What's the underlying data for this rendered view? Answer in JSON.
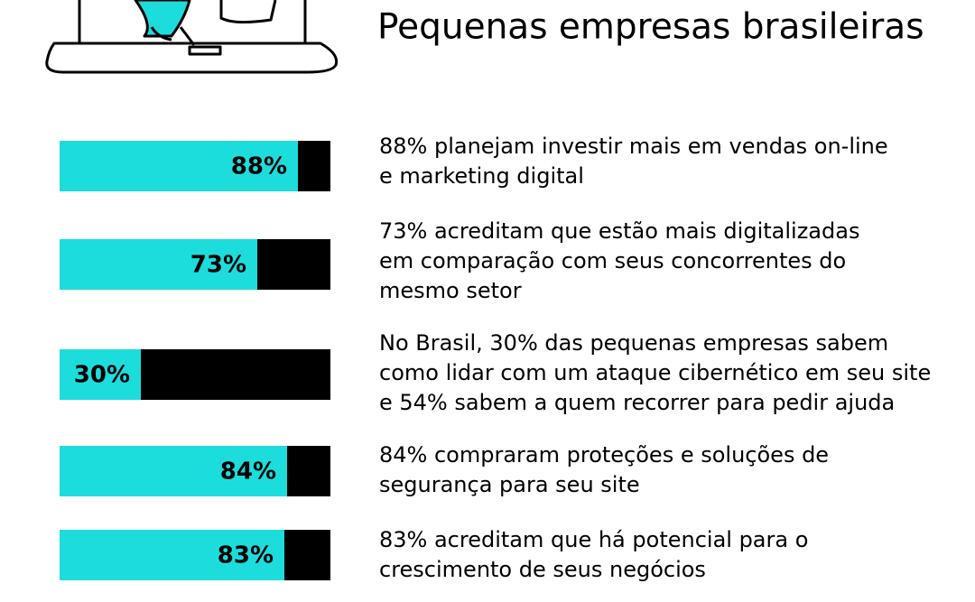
{
  "chart_data": {
    "type": "bar",
    "orientation": "horizontal",
    "title": "Pequenas empresas brasileiras",
    "values": [
      88,
      73,
      30,
      84,
      83
    ],
    "value_labels": [
      "88%",
      "73%",
      "30%",
      "84%",
      "83%"
    ],
    "descriptions": [
      [
        "88% planejam investir mais em vendas on-line",
        "e marketing digital"
      ],
      [
        "73% acreditam que estão mais digitalizadas",
        "em comparação com seus concorrentes do",
        "mesmo setor"
      ],
      [
        "No Brasil, 30% das pequenas empresas sabem",
        "como lidar com um ataque cibernético em seu site",
        "e 54% sabem a quem recorrer para pedir ajuda"
      ],
      [
        "84% compraram proteções e soluções de",
        "segurança para seu site"
      ],
      [
        "83% acreditam que há potencial para o",
        "crescimento de seus negócios"
      ]
    ],
    "xlim": [
      0,
      100
    ],
    "color": "#1ddcdc",
    "track_color": "#000000"
  }
}
